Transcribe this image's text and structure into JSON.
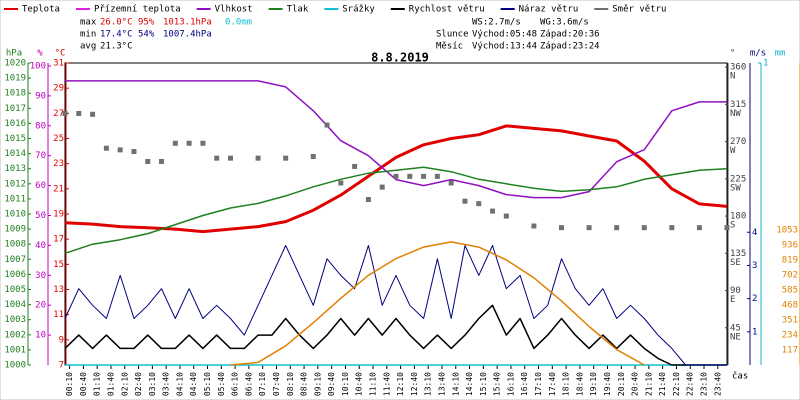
{
  "chart_data": {
    "type": "line",
    "title": "8.8.2019",
    "x_label": "čas",
    "xlim": [
      0,
      24
    ],
    "xticks": [
      {
        "value": 0.167,
        "label": "00:10"
      },
      {
        "value": 0.667,
        "label": "00:40"
      },
      {
        "value": 1.167,
        "label": "01:10"
      },
      {
        "value": 1.667,
        "label": "01:40"
      },
      {
        "value": 2.167,
        "label": "02:10"
      },
      {
        "value": 2.667,
        "label": "02:40"
      },
      {
        "value": 3.167,
        "label": "03:10"
      },
      {
        "value": 3.667,
        "label": "03:40"
      },
      {
        "value": 4.167,
        "label": "04:10"
      },
      {
        "value": 4.667,
        "label": "04:40"
      },
      {
        "value": 5.167,
        "label": "05:10"
      },
      {
        "value": 5.667,
        "label": "05:40"
      },
      {
        "value": 6.167,
        "label": "06:10"
      },
      {
        "value": 6.667,
        "label": "06:40"
      },
      {
        "value": 7.167,
        "label": "07:10"
      },
      {
        "value": 7.667,
        "label": "07:40"
      },
      {
        "value": 8.167,
        "label": "08:10"
      },
      {
        "value": 8.667,
        "label": "08:40"
      },
      {
        "value": 9.167,
        "label": "09:10"
      },
      {
        "value": 9.667,
        "label": "09:40"
      },
      {
        "value": 10.167,
        "label": "10:10"
      },
      {
        "value": 10.667,
        "label": "10:40"
      },
      {
        "value": 11.167,
        "label": "11:10"
      },
      {
        "value": 11.667,
        "label": "11:40"
      },
      {
        "value": 12.167,
        "label": "12:10"
      },
      {
        "value": 12.667,
        "label": "12:40"
      },
      {
        "value": 13.167,
        "label": "13:10"
      },
      {
        "value": 13.667,
        "label": "13:40"
      },
      {
        "value": 14.167,
        "label": "14:10"
      },
      {
        "value": 14.667,
        "label": "14:40"
      },
      {
        "value": 15.167,
        "label": "15:10"
      },
      {
        "value": 15.667,
        "label": "15:40"
      },
      {
        "value": 16.167,
        "label": "16:10"
      },
      {
        "value": 16.667,
        "label": "16:40"
      },
      {
        "value": 17.167,
        "label": "17:10"
      },
      {
        "value": 17.667,
        "label": "17:40"
      },
      {
        "value": 18.167,
        "label": "18:10"
      },
      {
        "value": 18.667,
        "label": "18:40"
      },
      {
        "value": 19.167,
        "label": "19:10"
      },
      {
        "value": 19.667,
        "label": "19:40"
      },
      {
        "value": 20.167,
        "label": "20:10"
      },
      {
        "value": 20.667,
        "label": "20:40"
      },
      {
        "value": 21.167,
        "label": "21:10"
      },
      {
        "value": 21.667,
        "label": "21:40"
      },
      {
        "value": 22.167,
        "label": "22:10"
      },
      {
        "value": 22.667,
        "label": "22:40"
      },
      {
        "value": 23.167,
        "label": "23:10"
      },
      {
        "value": 23.667,
        "label": "23:40"
      }
    ],
    "axes": {
      "pressure": {
        "label": "hPa",
        "color": "#208020",
        "lim": [
          1000,
          1020
        ],
        "ticks": [
          1000,
          1001,
          1002,
          1003,
          1004,
          1005,
          1006,
          1007,
          1008,
          1009,
          1010,
          1011,
          1012,
          1013,
          1014,
          1015,
          1016,
          1017,
          1018,
          1019,
          1020
        ]
      },
      "humidity": {
        "label": "%",
        "color": "#c000c0",
        "lim": [
          0,
          101
        ],
        "ticks": [
          10,
          20,
          30,
          40,
          50,
          60,
          70,
          80,
          90,
          100
        ]
      },
      "temp": {
        "label": "°C",
        "color": "#e00000",
        "lim": [
          7,
          31
        ],
        "ticks": [
          7,
          9,
          11,
          13,
          15,
          17,
          19,
          21,
          23,
          25,
          27,
          29,
          31
        ]
      },
      "dir": {
        "label": "°",
        "color": "#404040",
        "lim": [
          0,
          365
        ],
        "ticks": [
          45,
          90,
          135,
          180,
          225,
          270,
          315,
          360
        ],
        "tick_names": [
          "NE",
          "E",
          "SE",
          "S",
          "SW",
          "W",
          "NW",
          "N"
        ]
      },
      "wind": {
        "label": "m/s",
        "color": "#000080",
        "lim": [
          0,
          9.1
        ],
        "ticks": [
          1,
          2,
          3,
          4
        ]
      },
      "rain": {
        "label": "mm",
        "color": "#10b0d0",
        "lim": [
          0,
          1
        ],
        "ticks": [
          1
        ]
      },
      "solar": {
        "color": "#e08000",
        "lim": [
          0,
          2356
        ],
        "ticks": [
          117,
          234,
          351,
          468,
          585,
          702,
          819,
          936,
          1053
        ]
      }
    },
    "stats": {
      "max": {
        "label": "max",
        "temp": "26.0°C",
        "humidity": "95%",
        "pressure": "1013.1hPa",
        "rain": "0.0mm"
      },
      "min": {
        "label": "min",
        "temp": "17.4°C",
        "humidity": "54%",
        "pressure": "1007.4hPa"
      },
      "avg": {
        "label": "avg",
        "temp": "21.3°C"
      }
    },
    "info": [
      "WS:2.7m/s",
      "WG:3.6m/s",
      "Slunce",
      "Východ:05:48",
      "Západ:20:36",
      "Měsíc",
      "Východ:13:44",
      "Západ:23:24"
    ],
    "series": [
      {
        "name": "Teplota",
        "color": "#e00000",
        "axis": "temp",
        "width": 3,
        "x": [
          0,
          1,
          2,
          3,
          4,
          5,
          6,
          7,
          8,
          9,
          10,
          11,
          12,
          13,
          14,
          15,
          16,
          17,
          18,
          19,
          20,
          21,
          22,
          23,
          24
        ],
        "values": [
          18.3,
          18.2,
          18.0,
          17.9,
          17.8,
          17.6,
          17.8,
          18.0,
          18.4,
          19.3,
          20.5,
          22.0,
          23.5,
          24.5,
          25.0,
          25.3,
          26.0,
          25.8,
          25.6,
          25.2,
          24.8,
          23.2,
          21.0,
          19.8,
          19.6
        ]
      },
      {
        "name": "Přízemní teplota",
        "color": "#e020e0",
        "axis": "temp"
      },
      {
        "name": "Vlhkost",
        "color": "#9010c0",
        "axis": "humidity",
        "width": 1.5,
        "x": [
          0,
          1,
          2,
          3,
          4,
          5,
          6,
          7,
          8,
          9,
          10,
          11,
          12,
          13,
          14,
          15,
          16,
          17,
          18,
          19,
          20,
          21,
          22,
          23,
          24
        ],
        "values": [
          95,
          95,
          95,
          95,
          95,
          95,
          95,
          95,
          93,
          85,
          75,
          70,
          62,
          60,
          62,
          60,
          57,
          56,
          56,
          58,
          68,
          72,
          85,
          88,
          88
        ]
      },
      {
        "name": "Tlak",
        "color": "#208020",
        "axis": "pressure",
        "width": 1.5,
        "x": [
          0,
          1,
          2,
          3,
          4,
          5,
          6,
          7,
          8,
          9,
          10,
          11,
          12,
          13,
          14,
          15,
          16,
          17,
          18,
          19,
          20,
          21,
          22,
          23,
          24
        ],
        "values": [
          1007.4,
          1008.0,
          1008.3,
          1008.7,
          1009.3,
          1009.9,
          1010.4,
          1010.7,
          1011.2,
          1011.8,
          1012.3,
          1012.7,
          1012.9,
          1013.1,
          1012.8,
          1012.3,
          1012.0,
          1011.7,
          1011.5,
          1011.6,
          1011.8,
          1012.3,
          1012.6,
          1012.9,
          1013.0
        ]
      },
      {
        "name": "Srážky",
        "color": "#10c0d0",
        "axis": "rain",
        "width": 1.5,
        "x": [
          0,
          24
        ],
        "values": [
          0,
          0
        ]
      },
      {
        "name": "Rychlost větru",
        "color": "#000000",
        "axis": "wind",
        "width": 1.5,
        "x": [
          0,
          0.5,
          1,
          1.5,
          2,
          2.5,
          3,
          3.5,
          4,
          4.5,
          5,
          5.5,
          6,
          6.5,
          7,
          7.5,
          8,
          8.5,
          9,
          9.5,
          10,
          10.5,
          11,
          11.5,
          12,
          12.5,
          13,
          13.5,
          14,
          14.5,
          15,
          15.5,
          16,
          16.5,
          17,
          17.5,
          18,
          18.5,
          19,
          19.5,
          20,
          20.5,
          21,
          21.5,
          22,
          22.5,
          23,
          23.5,
          24
        ],
        "values": [
          0.5,
          0.9,
          0.5,
          0.9,
          0.5,
          0.5,
          0.9,
          0.5,
          0.5,
          0.9,
          0.5,
          0.9,
          0.5,
          0.5,
          0.9,
          0.9,
          1.4,
          0.9,
          0.5,
          0.9,
          1.4,
          0.9,
          1.4,
          0.9,
          1.4,
          0.9,
          0.5,
          0.9,
          0.5,
          0.9,
          1.4,
          1.8,
          0.9,
          1.4,
          0.5,
          0.9,
          1.4,
          0.9,
          0.5,
          0.9,
          0.5,
          0.9,
          0.5,
          0.2,
          0,
          0,
          0,
          0,
          0
        ]
      },
      {
        "name": "Náraz větru",
        "color": "#000080",
        "axis": "wind",
        "width": 1,
        "x": [
          0,
          0.5,
          1,
          1.5,
          2,
          2.5,
          3,
          3.5,
          4,
          4.5,
          5,
          5.5,
          6,
          6.5,
          7,
          7.5,
          8,
          8.5,
          9,
          9.5,
          10,
          10.5,
          11,
          11.5,
          12,
          12.5,
          13,
          13.5,
          14,
          14.5,
          15,
          15.5,
          16,
          16.5,
          17,
          17.5,
          18,
          18.5,
          19,
          19.5,
          20,
          20.5,
          21,
          21.5,
          22,
          22.5,
          23,
          23.5,
          24
        ],
        "values": [
          1.4,
          2.3,
          1.8,
          1.4,
          2.7,
          1.4,
          1.8,
          2.3,
          1.4,
          2.3,
          1.4,
          1.8,
          1.4,
          0.9,
          1.8,
          2.7,
          3.6,
          2.7,
          1.8,
          3.2,
          2.7,
          2.3,
          3.6,
          1.8,
          2.7,
          1.8,
          1.4,
          3.2,
          1.4,
          3.6,
          2.7,
          3.6,
          2.3,
          2.7,
          1.4,
          1.8,
          3.2,
          2.3,
          1.8,
          2.3,
          1.4,
          1.8,
          1.4,
          0.9,
          0.5,
          0,
          0,
          0,
          0
        ]
      },
      {
        "name": "Směr větru",
        "color": "#707070",
        "axis": "dir",
        "type": "scatter",
        "x": [
          0,
          0.5,
          1,
          1.5,
          2,
          2.5,
          3,
          3.5,
          4,
          4.5,
          5,
          5.5,
          6,
          7,
          8,
          9,
          9.5,
          10,
          10.5,
          11,
          11.5,
          12,
          12.5,
          13,
          13.5,
          14,
          14.5,
          15,
          15.5,
          16,
          17,
          18,
          19,
          20,
          21,
          22,
          23,
          24
        ],
        "values": [
          304,
          304,
          303,
          262,
          260,
          258,
          246,
          246,
          268,
          268,
          268,
          250,
          250,
          250,
          250,
          252,
          290,
          220,
          240,
          200,
          215,
          228,
          228,
          228,
          228,
          220,
          198,
          195,
          186,
          180,
          168,
          166,
          166,
          166,
          166,
          166,
          166,
          166
        ]
      },
      {
        "color": "#e08000",
        "axis": "solar",
        "width": 1.5,
        "x": [
          0,
          1,
          2,
          3,
          4,
          5,
          6,
          7,
          8,
          9,
          10,
          11,
          12,
          13,
          14,
          15,
          16,
          17,
          18,
          19,
          20,
          21,
          22,
          23,
          24
        ],
        "values": [
          null,
          null,
          null,
          null,
          null,
          null,
          0,
          20,
          150,
          330,
          520,
          700,
          830,
          920,
          960,
          920,
          820,
          680,
          500,
          300,
          120,
          0,
          null,
          null,
          null
        ]
      }
    ]
  }
}
